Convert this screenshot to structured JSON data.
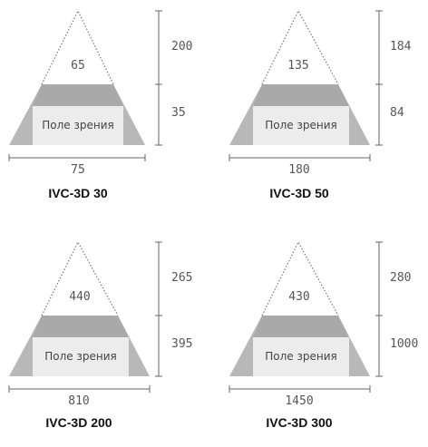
{
  "panels": [
    {
      "model": "IVC-3D 30",
      "top_width": "65",
      "height_upper": "200",
      "height_lower": "35",
      "bottom_width": "75",
      "fov_label": "Поле зрения"
    },
    {
      "model": "IVC-3D 50",
      "top_width": "135",
      "height_upper": "184",
      "height_lower": "84",
      "bottom_width": "180",
      "fov_label": "Поле зрения"
    },
    {
      "model": "IVC-3D 200",
      "top_width": "440",
      "height_upper": "265",
      "height_lower": "395",
      "bottom_width": "810",
      "fov_label": "Поле зрения"
    },
    {
      "model": "IVC-3D 300",
      "top_width": "430",
      "height_upper": "280",
      "height_lower": "1000",
      "bottom_width": "1450",
      "fov_label": "Поле зрения"
    }
  ],
  "colors": {
    "trapezoid_fill": "#b8b8b8",
    "top_band": "#a9a9a9",
    "fov_box": "#ececec",
    "line": "#666666",
    "dotted": "#777777"
  }
}
